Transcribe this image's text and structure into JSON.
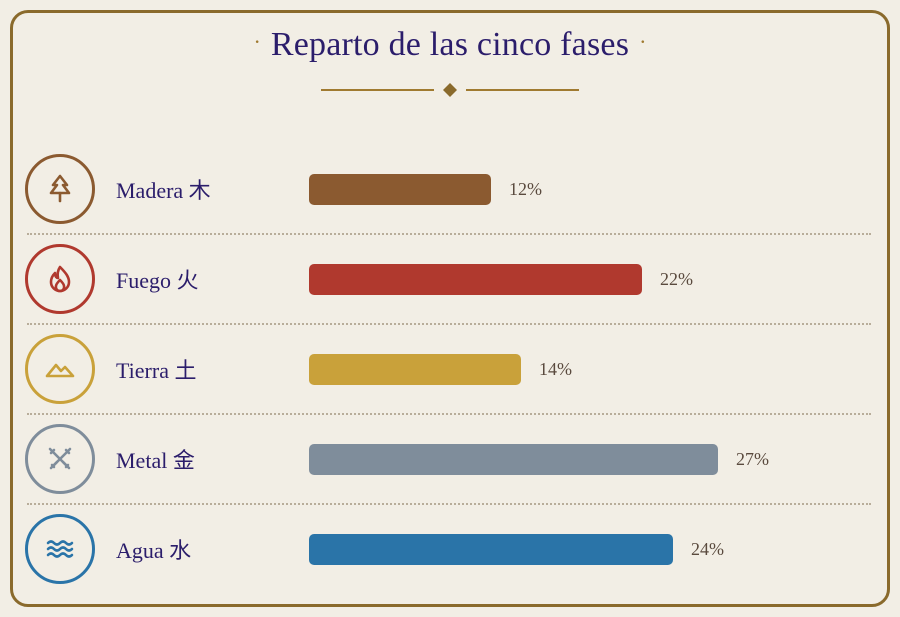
{
  "title": "Reparto de las cinco fases",
  "title_dot": "·",
  "chart_data": {
    "type": "bar",
    "orientation": "horizontal",
    "title": "Reparto de las cinco fases",
    "unit": "%",
    "xlim": [
      0,
      30
    ],
    "grid": false,
    "categories": [
      "Madera 木",
      "Fuego 火",
      "Tierra 土",
      "Metal 金",
      "Agua 水"
    ],
    "values": [
      12,
      22,
      14,
      27,
      24
    ],
    "value_labels": [
      "12%",
      "22%",
      "14%",
      "27%",
      "24%"
    ],
    "colors": [
      "#8b5a30",
      "#b0392e",
      "#c9a13a",
      "#7f8d9b",
      "#2a74a8"
    ],
    "icons": [
      "tree-icon",
      "fire-icon",
      "mountain-icon",
      "crossed-swords-icon",
      "waves-icon"
    ]
  }
}
